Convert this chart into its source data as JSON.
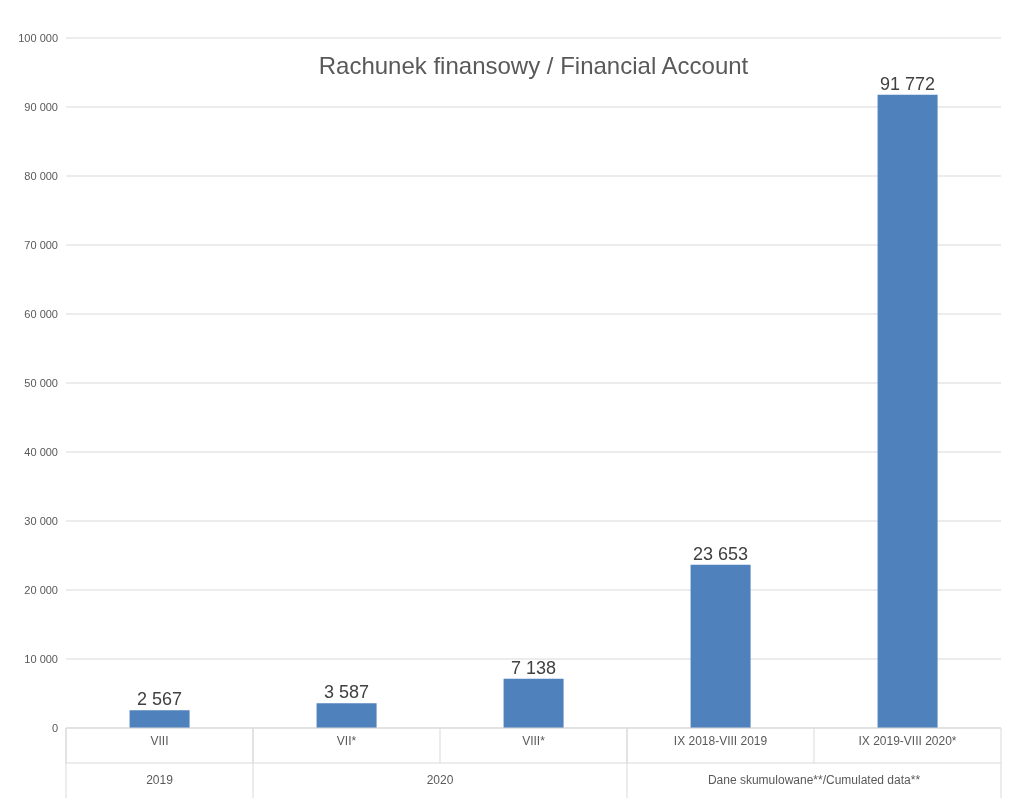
{
  "chart_data": {
    "type": "bar",
    "title": "Rachunek finansowy / Financial Account",
    "categories": [
      "VIII",
      "VII*",
      "VIII*",
      "IX 2018-VIII 2019",
      "IX 2019-VIII 2020*"
    ],
    "values": [
      2567,
      3587,
      7138,
      23653,
      91772
    ],
    "value_labels": [
      "2 567",
      "3 587",
      "7 138",
      "23 653",
      "91 772"
    ],
    "color": "#4f81bd",
    "ylim": [
      0,
      100000
    ],
    "yticks": [
      0,
      {
        "value": 10000,
        "label": "10 000"
      },
      {
        "value": 20000,
        "label": "20 000"
      },
      {
        "value": 30000,
        "label": "30 000"
      },
      {
        "value": 40000,
        "label": "40 000"
      },
      {
        "value": 50000,
        "label": "50 000"
      },
      {
        "value": 60000,
        "label": "60 000"
      },
      {
        "value": 70000,
        "label": "70 000"
      },
      {
        "value": 80000,
        "label": "80 000"
      },
      {
        "value": 90000,
        "label": "90 000"
      },
      {
        "value": 100000,
        "label": "100 000"
      }
    ],
    "annotations": [
      "2019",
      "2020",
      "Dane skumulowane**/Cumulated data**"
    ],
    "grid": "y",
    "legend": false
  }
}
